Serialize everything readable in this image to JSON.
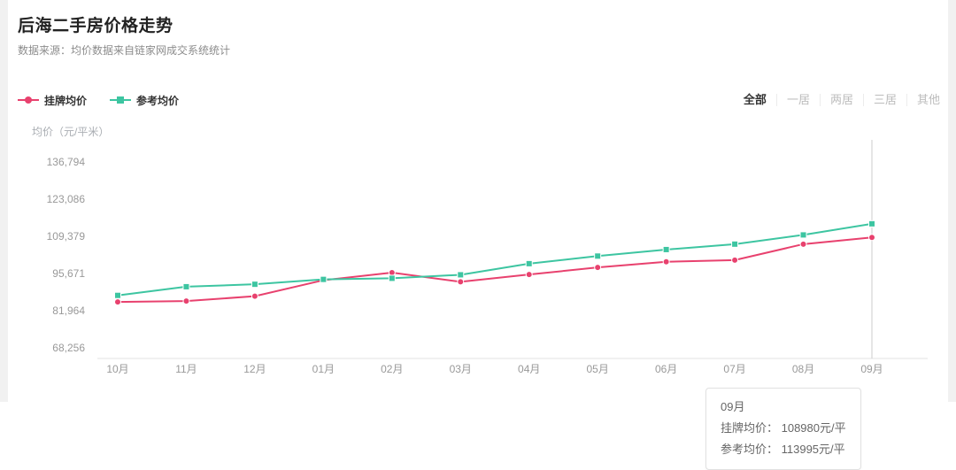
{
  "header": {
    "title": "后海二手房价格走势",
    "subtitle": "数据来源：均价数据来自链家网成交系统统计"
  },
  "filters": {
    "items": [
      {
        "label": "全部",
        "active": true
      },
      {
        "label": "一居",
        "active": false
      },
      {
        "label": "两居",
        "active": false
      },
      {
        "label": "三居",
        "active": false
      },
      {
        "label": "其他",
        "active": false
      }
    ]
  },
  "colors": {
    "listing_series": "#e8416e",
    "reference_series": "#3dc5a1",
    "axis_text": "#999999",
    "marker_line": "#cccccc"
  },
  "chart_data": {
    "type": "line",
    "title": "后海二手房价格走势",
    "xlabel": "",
    "ylabel": "均价（元/平米）",
    "categories": [
      "10月",
      "11月",
      "12月",
      "01月",
      "02月",
      "03月",
      "04月",
      "05月",
      "06月",
      "07月",
      "08月",
      "09月"
    ],
    "yticks": [
      68256,
      81964,
      95671,
      109379,
      123086,
      136794
    ],
    "ylim": [
      68256,
      136794
    ],
    "grid": false,
    "legend_position": "top-left",
    "series": [
      {
        "name": "挂牌均价",
        "color": "#e8416e",
        "marker": "circle",
        "values": [
          85200,
          85500,
          87300,
          93200,
          96000,
          92600,
          95300,
          97900,
          100000,
          100600,
          106500,
          108980
        ]
      },
      {
        "name": "参考均价",
        "color": "#3dc5a1",
        "marker": "square",
        "values": [
          87600,
          90800,
          91700,
          93500,
          93900,
          95200,
          99300,
          102100,
          104500,
          106500,
          109900,
          113995
        ]
      }
    ],
    "tooltip": {
      "month": "09月",
      "lines": [
        "挂牌均价： 108980元/平",
        "参考均价： 113995元/平"
      ],
      "highlight_index": 11,
      "listing_value": 108980,
      "reference_value": 113995
    }
  }
}
